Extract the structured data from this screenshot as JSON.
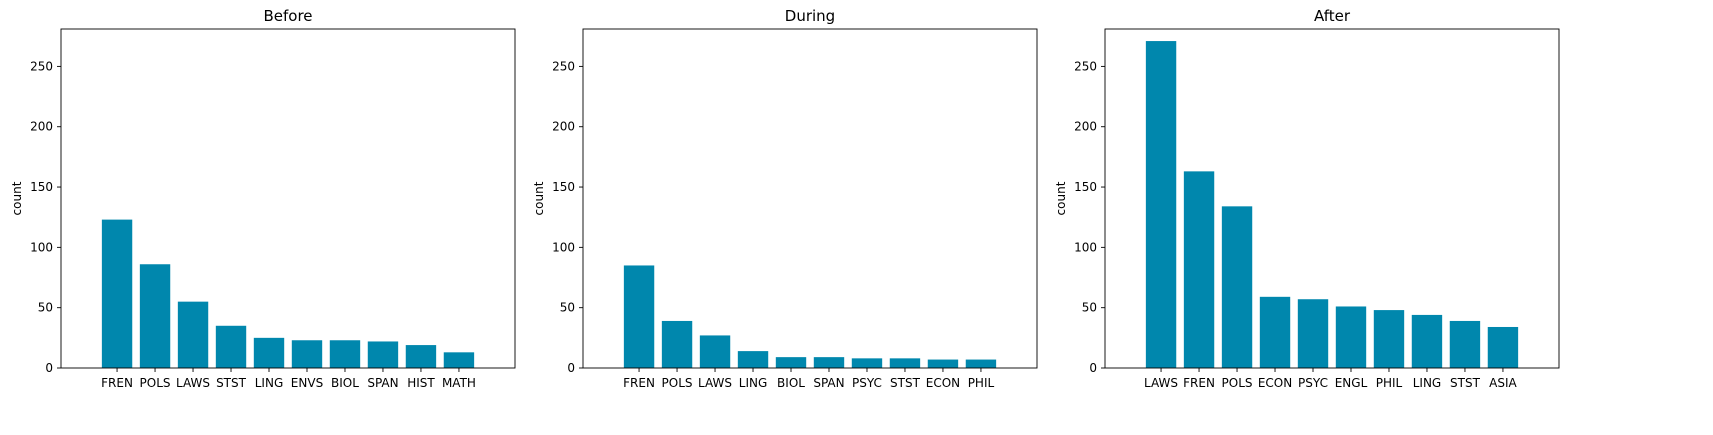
{
  "chart_data": [
    {
      "type": "bar",
      "title": "Before",
      "ylabel": "count",
      "xlabel": "",
      "ylim": [
        0,
        281
      ],
      "yticks": [
        0,
        50,
        100,
        150,
        200,
        250
      ],
      "bar_color": "#0087ad",
      "categories": [
        "FREN",
        "POLS",
        "LAWS",
        "STST",
        "LING",
        "ENVS",
        "BIOL",
        "SPAN",
        "HIST",
        "MATH"
      ],
      "values": [
        123,
        86,
        55,
        35,
        25,
        23,
        23,
        22,
        19,
        13
      ]
    },
    {
      "type": "bar",
      "title": "During",
      "ylabel": "count",
      "xlabel": "",
      "ylim": [
        0,
        281
      ],
      "yticks": [
        0,
        50,
        100,
        150,
        200,
        250
      ],
      "bar_color": "#0087ad",
      "categories": [
        "FREN",
        "POLS",
        "LAWS",
        "LING",
        "BIOL",
        "SPAN",
        "PSYC",
        "STST",
        "ECON",
        "PHIL"
      ],
      "values": [
        85,
        39,
        27,
        14,
        9,
        9,
        8,
        8,
        7,
        7
      ]
    },
    {
      "type": "bar",
      "title": "After",
      "ylabel": "count",
      "xlabel": "",
      "ylim": [
        0,
        281
      ],
      "yticks": [
        0,
        50,
        100,
        150,
        200,
        250
      ],
      "bar_color": "#0087ad",
      "categories": [
        "LAWS",
        "FREN",
        "POLS",
        "ECON",
        "PSYC",
        "ENGL",
        "PHIL",
        "LING",
        "STST",
        "ASIA"
      ],
      "values": [
        271,
        163,
        134,
        59,
        57,
        51,
        48,
        44,
        39,
        34
      ]
    }
  ]
}
